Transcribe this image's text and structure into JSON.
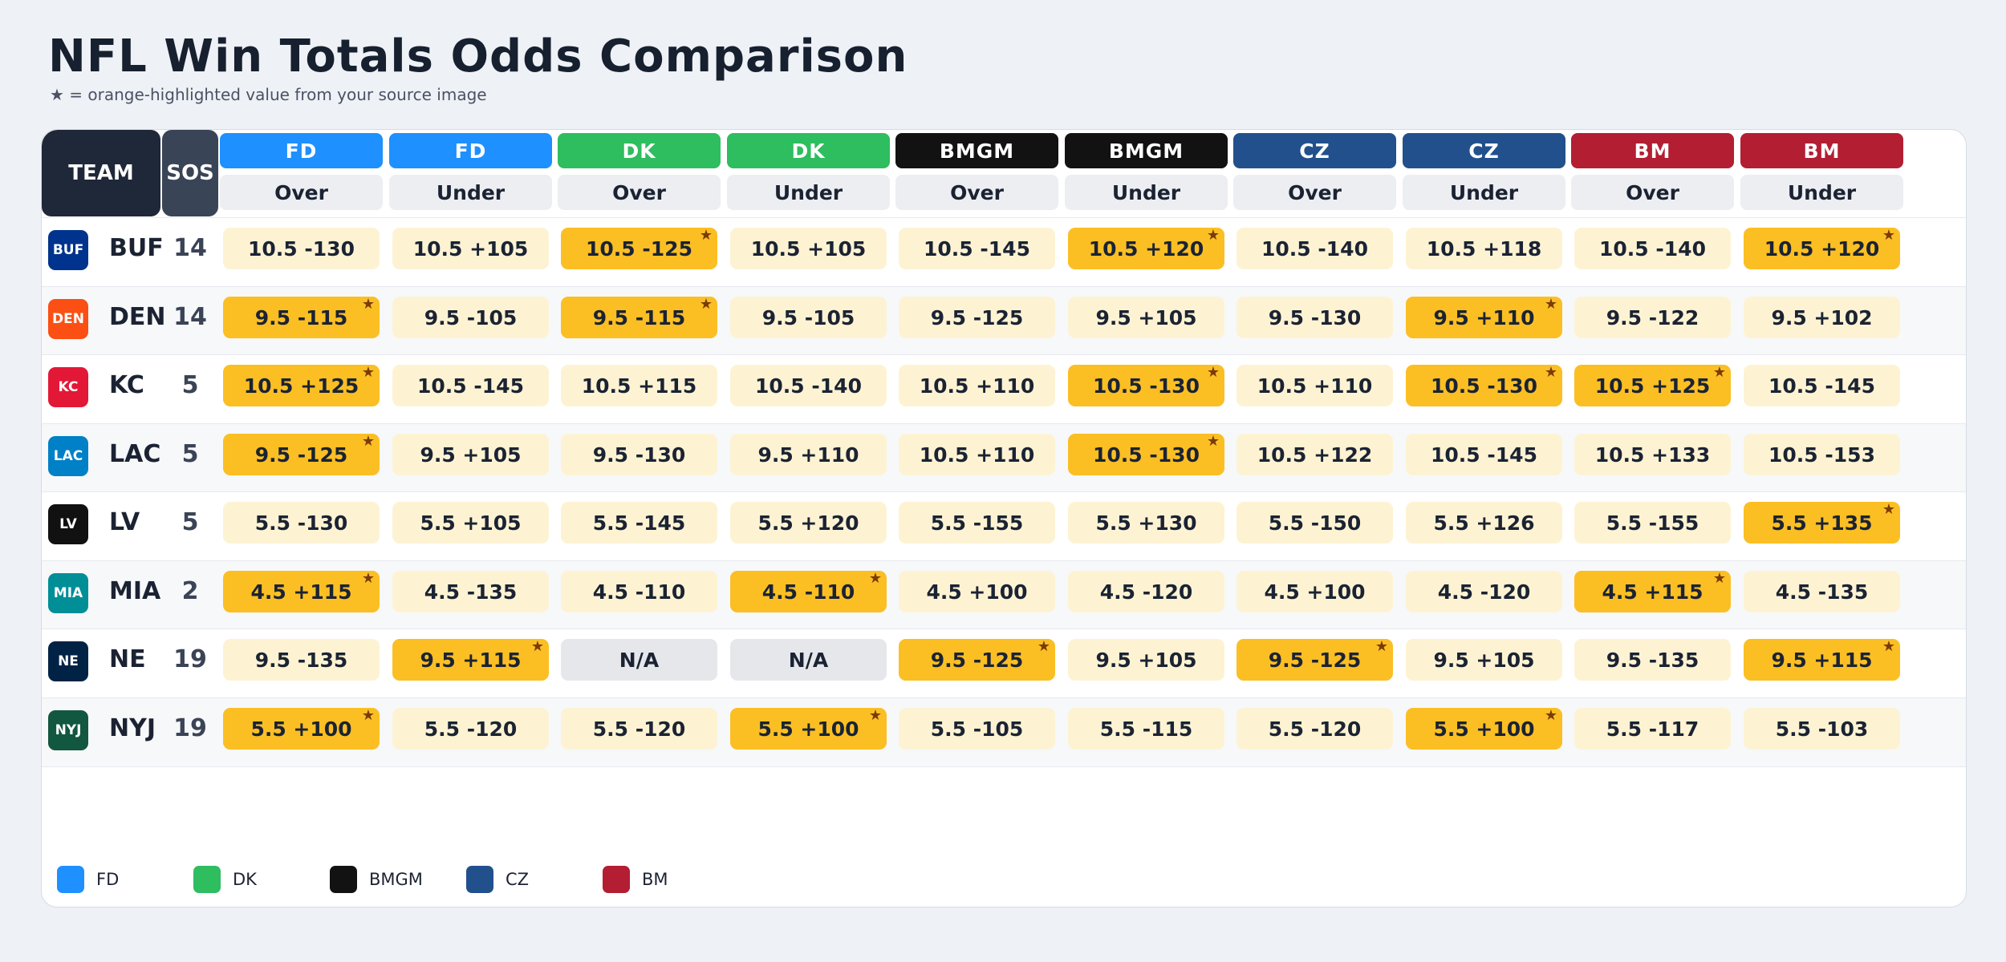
{
  "title": "NFL Win Totals Odds Comparison",
  "subtitle": "★ = orange-highlighted value from your source image",
  "table": {
    "team_header": "TEAM",
    "sos_header": "SOS",
    "columns": [
      {
        "book": "FD",
        "side": "Over",
        "color": "#1e90ff"
      },
      {
        "book": "FD",
        "side": "Under",
        "color": "#1e90ff"
      },
      {
        "book": "DK",
        "side": "Over",
        "color": "#2ebd5f"
      },
      {
        "book": "DK",
        "side": "Under",
        "color": "#2ebd5f"
      },
      {
        "book": "BMGM",
        "side": "Over",
        "color": "#121212"
      },
      {
        "book": "BMGM",
        "side": "Under",
        "color": "#121212"
      },
      {
        "book": "CZ",
        "side": "Over",
        "color": "#21508d"
      },
      {
        "book": "CZ",
        "side": "Under",
        "color": "#21508d"
      },
      {
        "book": "BM",
        "side": "Over",
        "color": "#b31e32"
      },
      {
        "book": "BM",
        "side": "Under",
        "color": "#b31e32"
      }
    ],
    "rows": [
      {
        "team": "BUF",
        "badge_color": "#00338d",
        "sos": "14",
        "cells": [
          {
            "value": "10.5 -130",
            "highlight": false
          },
          {
            "value": "10.5 +105",
            "highlight": false
          },
          {
            "value": "10.5 -125",
            "highlight": true
          },
          {
            "value": "10.5 +105",
            "highlight": false
          },
          {
            "value": "10.5 -145",
            "highlight": false
          },
          {
            "value": "10.5 +120",
            "highlight": true
          },
          {
            "value": "10.5 -140",
            "highlight": false
          },
          {
            "value": "10.5 +118",
            "highlight": false
          },
          {
            "value": "10.5 -140",
            "highlight": false
          },
          {
            "value": "10.5 +120",
            "highlight": true
          }
        ]
      },
      {
        "team": "DEN",
        "badge_color": "#fb4f14",
        "sos": "14",
        "cells": [
          {
            "value": "9.5 -115",
            "highlight": true
          },
          {
            "value": "9.5 -105",
            "highlight": false
          },
          {
            "value": "9.5 -115",
            "highlight": true
          },
          {
            "value": "9.5 -105",
            "highlight": false
          },
          {
            "value": "9.5 -125",
            "highlight": false
          },
          {
            "value": "9.5 +105",
            "highlight": false
          },
          {
            "value": "9.5 -130",
            "highlight": false
          },
          {
            "value": "9.5 +110",
            "highlight": true
          },
          {
            "value": "9.5 -122",
            "highlight": false
          },
          {
            "value": "9.5 +102",
            "highlight": false
          }
        ]
      },
      {
        "team": "KC",
        "badge_color": "#e31837",
        "sos": "5",
        "cells": [
          {
            "value": "10.5 +125",
            "highlight": true
          },
          {
            "value": "10.5 -145",
            "highlight": false
          },
          {
            "value": "10.5 +115",
            "highlight": false
          },
          {
            "value": "10.5 -140",
            "highlight": false
          },
          {
            "value": "10.5 +110",
            "highlight": false
          },
          {
            "value": "10.5 -130",
            "highlight": true
          },
          {
            "value": "10.5 +110",
            "highlight": false
          },
          {
            "value": "10.5 -130",
            "highlight": true
          },
          {
            "value": "10.5 +125",
            "highlight": true
          },
          {
            "value": "10.5 -145",
            "highlight": false
          }
        ]
      },
      {
        "team": "LAC",
        "badge_color": "#0080c6",
        "sos": "5",
        "cells": [
          {
            "value": "9.5 -125",
            "highlight": true
          },
          {
            "value": "9.5 +105",
            "highlight": false
          },
          {
            "value": "9.5 -130",
            "highlight": false
          },
          {
            "value": "9.5 +110",
            "highlight": false
          },
          {
            "value": "10.5 +110",
            "highlight": false
          },
          {
            "value": "10.5 -130",
            "highlight": true
          },
          {
            "value": "10.5 +122",
            "highlight": false
          },
          {
            "value": "10.5 -145",
            "highlight": false
          },
          {
            "value": "10.5 +133",
            "highlight": false
          },
          {
            "value": "10.5 -153",
            "highlight": false
          }
        ]
      },
      {
        "team": "LV",
        "badge_color": "#111111",
        "sos": "5",
        "cells": [
          {
            "value": "5.5 -130",
            "highlight": false
          },
          {
            "value": "5.5 +105",
            "highlight": false
          },
          {
            "value": "5.5 -145",
            "highlight": false
          },
          {
            "value": "5.5 +120",
            "highlight": false
          },
          {
            "value": "5.5 -155",
            "highlight": false
          },
          {
            "value": "5.5 +130",
            "highlight": false
          },
          {
            "value": "5.5 -150",
            "highlight": false
          },
          {
            "value": "5.5 +126",
            "highlight": false
          },
          {
            "value": "5.5 -155",
            "highlight": false
          },
          {
            "value": "5.5 +135",
            "highlight": true
          }
        ]
      },
      {
        "team": "MIA",
        "badge_color": "#008e97",
        "sos": "2",
        "cells": [
          {
            "value": "4.5 +115",
            "highlight": true
          },
          {
            "value": "4.5 -135",
            "highlight": false
          },
          {
            "value": "4.5 -110",
            "highlight": false
          },
          {
            "value": "4.5 -110",
            "highlight": true
          },
          {
            "value": "4.5 +100",
            "highlight": false
          },
          {
            "value": "4.5 -120",
            "highlight": false
          },
          {
            "value": "4.5 +100",
            "highlight": false
          },
          {
            "value": "4.5 -120",
            "highlight": false
          },
          {
            "value": "4.5 +115",
            "highlight": true
          },
          {
            "value": "4.5 -135",
            "highlight": false
          }
        ]
      },
      {
        "team": "NE",
        "badge_color": "#002244",
        "sos": "19",
        "cells": [
          {
            "value": "9.5 -135",
            "highlight": false
          },
          {
            "value": "9.5 +115",
            "highlight": true
          },
          {
            "value": "N/A",
            "highlight": false,
            "na": true
          },
          {
            "value": "N/A",
            "highlight": false,
            "na": true
          },
          {
            "value": "9.5 -125",
            "highlight": true
          },
          {
            "value": "9.5 +105",
            "highlight": false
          },
          {
            "value": "9.5 -125",
            "highlight": true
          },
          {
            "value": "9.5 +105",
            "highlight": false
          },
          {
            "value": "9.5 -135",
            "highlight": false
          },
          {
            "value": "9.5 +115",
            "highlight": true
          }
        ]
      },
      {
        "team": "NYJ",
        "badge_color": "#125740",
        "sos": "19",
        "cells": [
          {
            "value": "5.5 +100",
            "highlight": true
          },
          {
            "value": "5.5 -120",
            "highlight": false
          },
          {
            "value": "5.5 -120",
            "highlight": false
          },
          {
            "value": "5.5 +100",
            "highlight": true
          },
          {
            "value": "5.5 -105",
            "highlight": false
          },
          {
            "value": "5.5 -115",
            "highlight": false
          },
          {
            "value": "5.5 -120",
            "highlight": false
          },
          {
            "value": "5.5 +100",
            "highlight": true
          },
          {
            "value": "5.5 -117",
            "highlight": false
          },
          {
            "value": "5.5 -103",
            "highlight": false
          }
        ]
      }
    ]
  },
  "legend": [
    {
      "label": "FD",
      "color": "#1e90ff"
    },
    {
      "label": "DK",
      "color": "#2ebd5f"
    },
    {
      "label": "BMGM",
      "color": "#121212"
    },
    {
      "label": "CZ",
      "color": "#21508d"
    },
    {
      "label": "BM",
      "color": "#b31e32"
    }
  ],
  "star_glyph": "★"
}
